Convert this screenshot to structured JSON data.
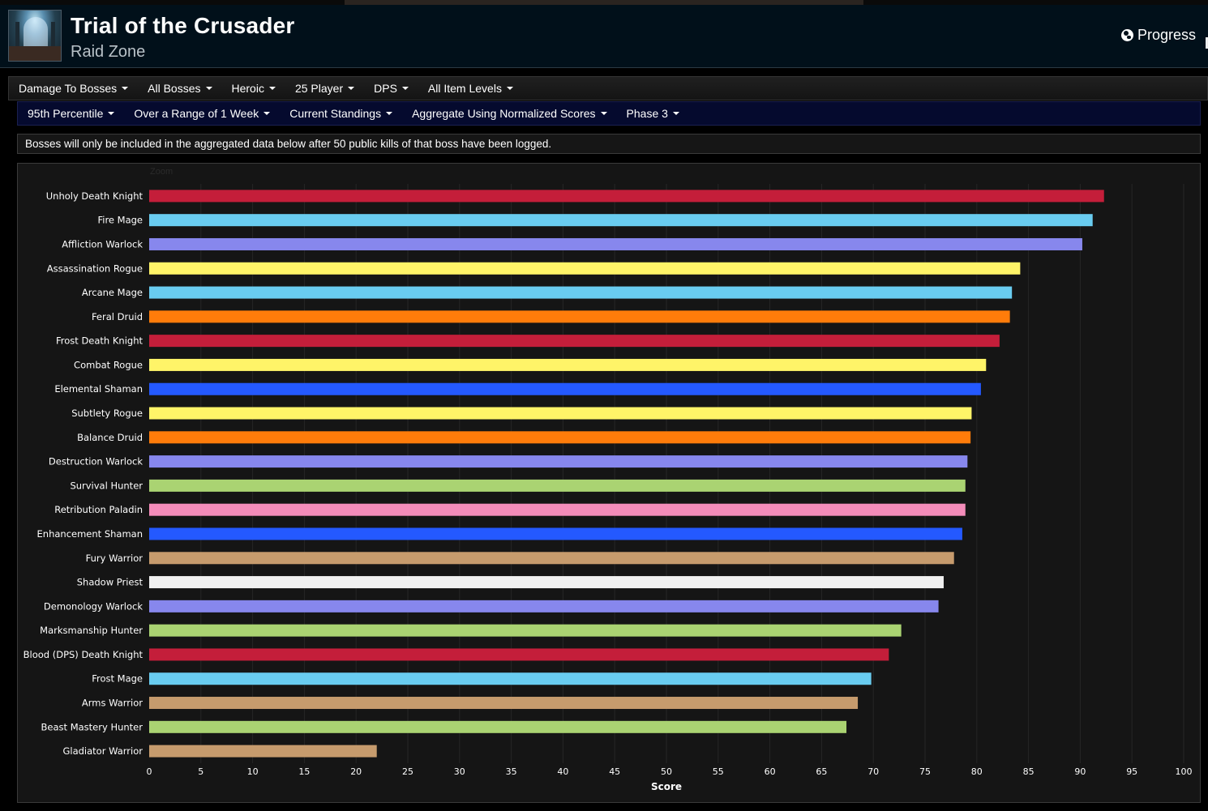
{
  "header": {
    "title": "Trial of the Crusader",
    "subtitle": "Raid Zone",
    "progress_label": "Progress"
  },
  "filters_primary": [
    {
      "label": "Damage To Bosses"
    },
    {
      "label": "All Bosses"
    },
    {
      "label": "Heroic"
    },
    {
      "label": "25 Player"
    },
    {
      "label": "DPS"
    },
    {
      "label": "All Item Levels"
    }
  ],
  "filters_secondary": [
    {
      "label": "95th Percentile"
    },
    {
      "label": "Over a Range of 1 Week"
    },
    {
      "label": "Current Standings"
    },
    {
      "label": "Aggregate Using Normalized Scores"
    },
    {
      "label": "Phase 3"
    }
  ],
  "notice": "Bosses will only be included in the aggregated data below after 50 public kills of that boss have been logged.",
  "chart_data": {
    "type": "bar",
    "orientation": "horizontal",
    "zoom_label": "Zoom",
    "xlabel": "Score",
    "xlim": [
      0,
      100
    ],
    "xticks": [
      0,
      5,
      10,
      15,
      20,
      25,
      30,
      35,
      40,
      45,
      50,
      55,
      60,
      65,
      70,
      75,
      80,
      85,
      90,
      95,
      100
    ],
    "grid": true,
    "categories": [
      "Unholy Death Knight",
      "Fire Mage",
      "Affliction Warlock",
      "Assassination Rogue",
      "Arcane Mage",
      "Feral Druid",
      "Frost Death Knight",
      "Combat Rogue",
      "Elemental Shaman",
      "Subtlety Rogue",
      "Balance Druid",
      "Destruction Warlock",
      "Survival Hunter",
      "Retribution Paladin",
      "Enhancement Shaman",
      "Fury Warrior",
      "Shadow Priest",
      "Demonology Warlock",
      "Marksmanship Hunter",
      "Blood (DPS) Death Knight",
      "Frost Mage",
      "Arms Warrior",
      "Beast Mastery Hunter",
      "Gladiator Warrior"
    ],
    "values": [
      92.3,
      91.2,
      90.2,
      84.2,
      83.4,
      83.2,
      82.2,
      80.9,
      80.4,
      79.5,
      79.4,
      79.1,
      78.9,
      78.9,
      78.6,
      77.8,
      76.8,
      76.3,
      72.7,
      71.5,
      69.8,
      68.5,
      67.4,
      22.0
    ],
    "colors": [
      "#C41E3A",
      "#69CCF0",
      "#8787ED",
      "#FFF468",
      "#69CCF0",
      "#FF7C0A",
      "#C41E3A",
      "#FFF468",
      "#2459FF",
      "#FFF468",
      "#FF7C0A",
      "#8787ED",
      "#AAD372",
      "#F48CBA",
      "#2459FF",
      "#C69B6D",
      "#F0F0F0",
      "#8787ED",
      "#AAD372",
      "#C41E3A",
      "#69CCF0",
      "#C69B6D",
      "#AAD372",
      "#C69B6D"
    ]
  }
}
